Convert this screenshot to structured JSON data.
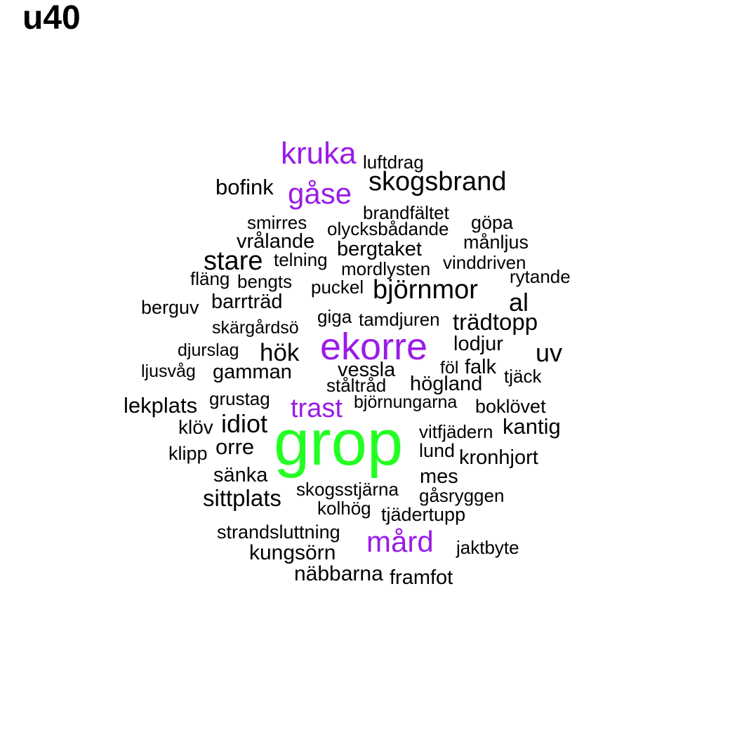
{
  "title": "u40",
  "colors": {
    "high": "#22ff22",
    "mid": "#9a1be6",
    "low": "#000000"
  },
  "words": [
    {
      "text": "grop",
      "tier": "high"
    },
    {
      "text": "ekorre",
      "tier": "mid"
    },
    {
      "text": "kruka",
      "tier": "mid"
    },
    {
      "text": "gåse",
      "tier": "mid"
    },
    {
      "text": "trast",
      "tier": "mid"
    },
    {
      "text": "mård",
      "tier": "mid"
    },
    {
      "text": "luftdrag",
      "tier": "low"
    },
    {
      "text": "bofink",
      "tier": "low"
    },
    {
      "text": "skogsbrand",
      "tier": "low"
    },
    {
      "text": "brandfältet",
      "tier": "low"
    },
    {
      "text": "smirres",
      "tier": "low"
    },
    {
      "text": "olycksbådande",
      "tier": "low"
    },
    {
      "text": "göpa",
      "tier": "low"
    },
    {
      "text": "vrålande",
      "tier": "low"
    },
    {
      "text": "bergtaket",
      "tier": "low"
    },
    {
      "text": "månljus",
      "tier": "low"
    },
    {
      "text": "stare",
      "tier": "low"
    },
    {
      "text": "telning",
      "tier": "low"
    },
    {
      "text": "vinddriven",
      "tier": "low"
    },
    {
      "text": "mordlysten",
      "tier": "low"
    },
    {
      "text": "fläng",
      "tier": "low"
    },
    {
      "text": "bengts",
      "tier": "low"
    },
    {
      "text": "rytande",
      "tier": "low"
    },
    {
      "text": "puckel",
      "tier": "low"
    },
    {
      "text": "björnmor",
      "tier": "low"
    },
    {
      "text": "barrträd",
      "tier": "low"
    },
    {
      "text": "al",
      "tier": "low"
    },
    {
      "text": "berguv",
      "tier": "low"
    },
    {
      "text": "giga",
      "tier": "low"
    },
    {
      "text": "tamdjuren",
      "tier": "low"
    },
    {
      "text": "trädtopp",
      "tier": "low"
    },
    {
      "text": "skärgårdsö",
      "tier": "low"
    },
    {
      "text": "lodjur",
      "tier": "low"
    },
    {
      "text": "djurslag",
      "tier": "low"
    },
    {
      "text": "hök",
      "tier": "low"
    },
    {
      "text": "uv",
      "tier": "low"
    },
    {
      "text": "ljusvåg",
      "tier": "low"
    },
    {
      "text": "gamman",
      "tier": "low"
    },
    {
      "text": "vessla",
      "tier": "low"
    },
    {
      "text": "föl",
      "tier": "low"
    },
    {
      "text": "falk",
      "tier": "low"
    },
    {
      "text": "tjäck",
      "tier": "low"
    },
    {
      "text": "ståltråd",
      "tier": "low"
    },
    {
      "text": "högland",
      "tier": "low"
    },
    {
      "text": "grustag",
      "tier": "low"
    },
    {
      "text": "lekplats",
      "tier": "low"
    },
    {
      "text": "björnungarna",
      "tier": "low"
    },
    {
      "text": "boklövet",
      "tier": "low"
    },
    {
      "text": "idiot",
      "tier": "low"
    },
    {
      "text": "klöv",
      "tier": "low"
    },
    {
      "text": "kantig",
      "tier": "low"
    },
    {
      "text": "vitfjädern",
      "tier": "low"
    },
    {
      "text": "orre",
      "tier": "low"
    },
    {
      "text": "klipp",
      "tier": "low"
    },
    {
      "text": "lund",
      "tier": "low"
    },
    {
      "text": "kronhjort",
      "tier": "low"
    },
    {
      "text": "sänka",
      "tier": "low"
    },
    {
      "text": "mes",
      "tier": "low"
    },
    {
      "text": "skogsstjärna",
      "tier": "low"
    },
    {
      "text": "sittplats",
      "tier": "low"
    },
    {
      "text": "gåsryggen",
      "tier": "low"
    },
    {
      "text": "kolhög",
      "tier": "low"
    },
    {
      "text": "tjädertupp",
      "tier": "low"
    },
    {
      "text": "strandsluttning",
      "tier": "low"
    },
    {
      "text": "kungsörn",
      "tier": "low"
    },
    {
      "text": "jaktbyte",
      "tier": "low"
    },
    {
      "text": "näbbarna",
      "tier": "low"
    },
    {
      "text": "framfot",
      "tier": "low"
    }
  ]
}
